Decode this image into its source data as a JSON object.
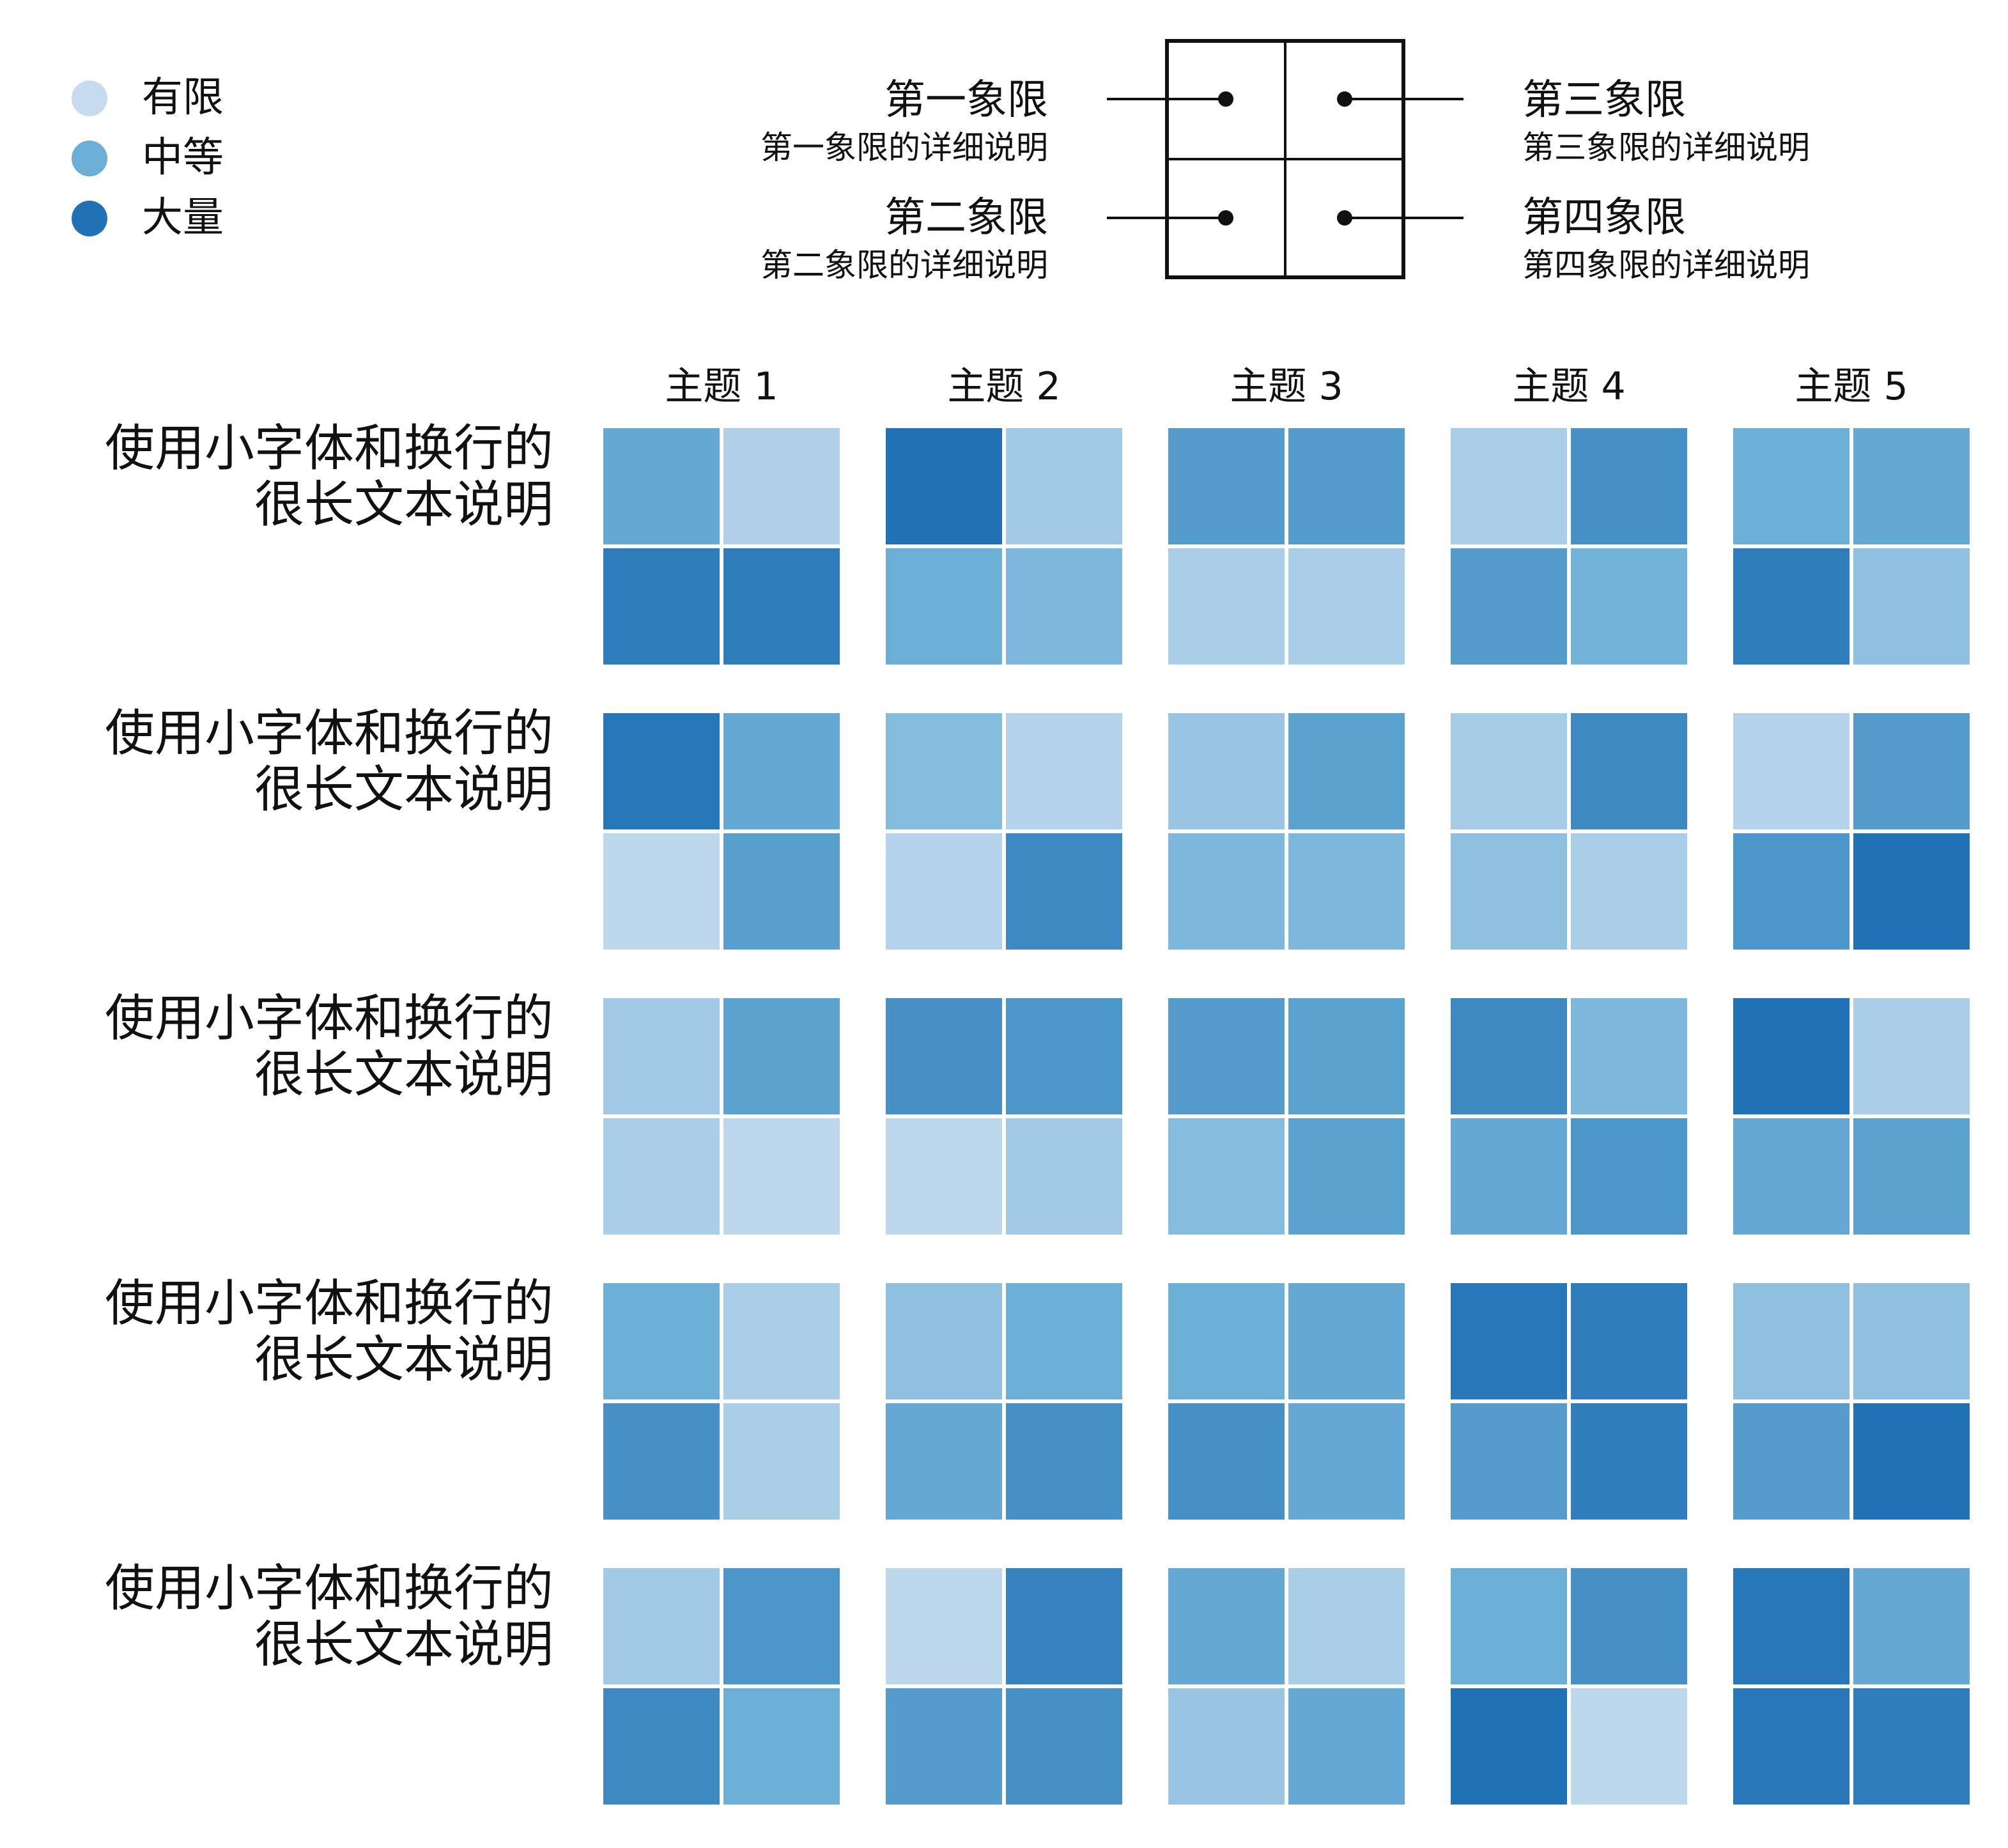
{
  "legend": {
    "items": [
      {
        "label": "有限",
        "color": "#c6dbef"
      },
      {
        "label": "中等",
        "color": "#6baed6"
      },
      {
        "label": "大量",
        "color": "#2171b5"
      }
    ]
  },
  "key": {
    "q1": {
      "title": "第一象限",
      "desc": "第一象限的详细说明"
    },
    "q2": {
      "title": "第二象限",
      "desc": "第二象限的详细说明"
    },
    "q3": {
      "title": "第三象限",
      "desc": "第三象限的详细说明"
    },
    "q4": {
      "title": "第四象限",
      "desc": "第四象限的详细说明"
    }
  },
  "chart_data": {
    "type": "heatmap",
    "scale": {
      "min": 0,
      "max": 1,
      "colors": [
        "#c6dbef",
        "#6baed6",
        "#2171b5"
      ]
    },
    "cell_order": [
      "第一象限",
      "第三象限",
      "第二象限",
      "第四象限"
    ],
    "columns": [
      "主题 1",
      "主题 2",
      "主题 3",
      "主题 4",
      "主题 5"
    ],
    "rows": [
      {
        "label_line1": "使用小字体和换行的",
        "label_line2": "很长文本说明",
        "cells": [
          [
            0.55,
            0.12,
            0.9,
            0.9
          ],
          [
            1.0,
            0.2,
            0.5,
            0.4
          ],
          [
            0.65,
            0.65,
            0.15,
            0.15
          ],
          [
            0.15,
            0.75,
            0.65,
            0.45
          ],
          [
            0.5,
            0.55,
            0.9,
            0.3
          ]
        ]
      },
      {
        "label_line1": "使用小字体和换行的",
        "label_line2": "很长文本说明",
        "cells": [
          [
            0.95,
            0.55,
            0.05,
            0.62
          ],
          [
            0.35,
            0.1,
            0.1,
            0.8
          ],
          [
            0.25,
            0.6,
            0.4,
            0.4
          ],
          [
            0.18,
            0.8,
            0.3,
            0.15
          ],
          [
            0.1,
            0.65,
            0.7,
            1.0
          ]
        ]
      },
      {
        "label_line1": "使用小字体和换行的",
        "label_line2": "很长文本说明",
        "cells": [
          [
            0.2,
            0.6,
            0.15,
            0.05
          ],
          [
            0.75,
            0.7,
            0.05,
            0.2
          ],
          [
            0.65,
            0.6,
            0.35,
            0.6
          ],
          [
            0.8,
            0.4,
            0.55,
            0.7
          ],
          [
            1.0,
            0.15,
            0.55,
            0.6
          ]
        ]
      },
      {
        "label_line1": "使用小字体和换行的",
        "label_line2": "很长文本说明",
        "cells": [
          [
            0.5,
            0.15,
            0.75,
            0.15
          ],
          [
            0.3,
            0.5,
            0.55,
            0.75
          ],
          [
            0.5,
            0.55,
            0.75,
            0.55
          ],
          [
            0.95,
            0.9,
            0.65,
            0.9
          ],
          [
            0.3,
            0.3,
            0.65,
            1.0
          ]
        ]
      },
      {
        "label_line1": "使用小字体和换行的",
        "label_line2": "很长文本说明",
        "cells": [
          [
            0.2,
            0.7,
            0.8,
            0.5
          ],
          [
            0.05,
            0.85,
            0.65,
            0.75
          ],
          [
            0.55,
            0.15,
            0.25,
            0.55
          ],
          [
            0.5,
            0.75,
            1.0,
            0.05
          ],
          [
            0.95,
            0.55,
            0.95,
            0.9
          ]
        ]
      }
    ]
  }
}
